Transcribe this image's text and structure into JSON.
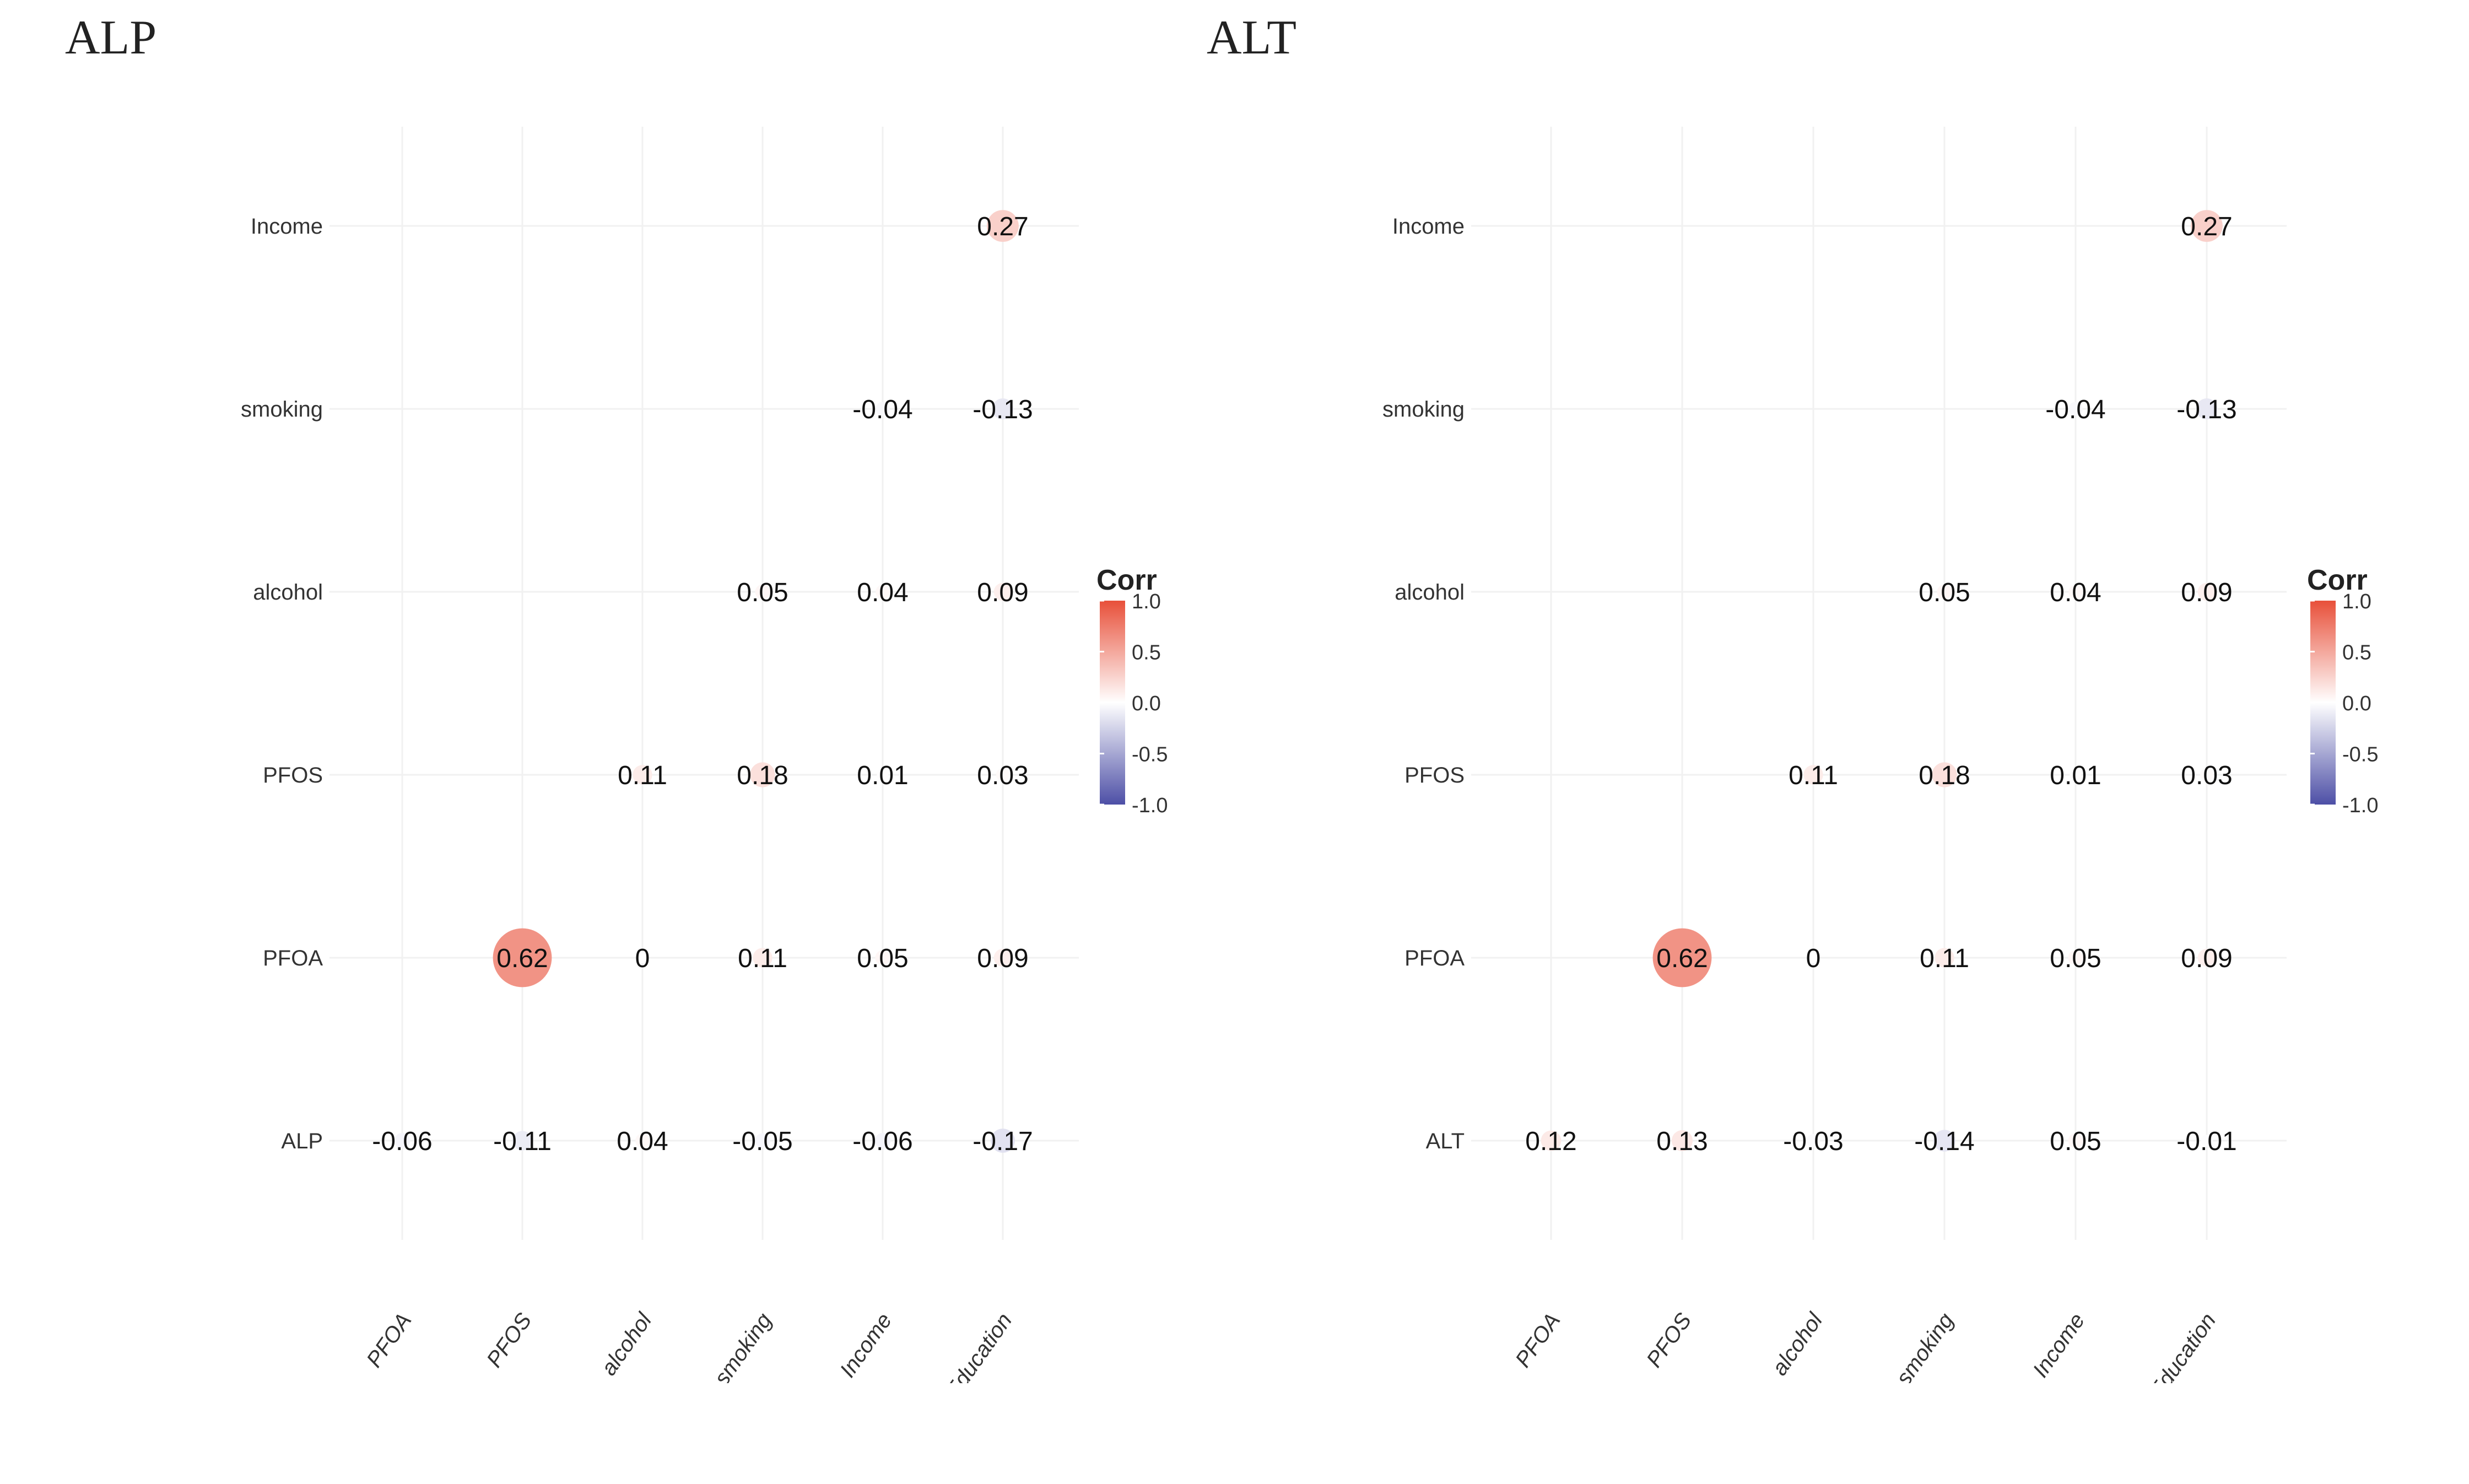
{
  "chart_data": [
    {
      "type": "heatmap",
      "title": "ALP",
      "rows": [
        "Income",
        "smoking",
        "alcohol",
        "PFOS",
        "PFOA",
        "ALP"
      ],
      "columns": [
        "PFOA",
        "PFOS",
        "alcohol",
        "smoking",
        "Income",
        "Education"
      ],
      "cells": [
        {
          "row": "Income",
          "col": "Education",
          "value": 0.27,
          "label": "0.27"
        },
        {
          "row": "smoking",
          "col": "Income",
          "value": -0.04,
          "label": "-0.04"
        },
        {
          "row": "smoking",
          "col": "Education",
          "value": -0.13,
          "label": "-0.13"
        },
        {
          "row": "alcohol",
          "col": "smoking",
          "value": 0.05,
          "label": "0.05"
        },
        {
          "row": "alcohol",
          "col": "Income",
          "value": 0.04,
          "label": "0.04"
        },
        {
          "row": "alcohol",
          "col": "Education",
          "value": 0.09,
          "label": "0.09"
        },
        {
          "row": "PFOS",
          "col": "alcohol",
          "value": 0.11,
          "label": "0.11"
        },
        {
          "row": "PFOS",
          "col": "smoking",
          "value": 0.18,
          "label": "0.18"
        },
        {
          "row": "PFOS",
          "col": "Income",
          "value": 0.01,
          "label": "0.01"
        },
        {
          "row": "PFOS",
          "col": "Education",
          "value": 0.03,
          "label": "0.03"
        },
        {
          "row": "PFOA",
          "col": "PFOS",
          "value": 0.62,
          "label": "0.62"
        },
        {
          "row": "PFOA",
          "col": "alcohol",
          "value": 0,
          "label": "0"
        },
        {
          "row": "PFOA",
          "col": "smoking",
          "value": 0.11,
          "label": "0.11"
        },
        {
          "row": "PFOA",
          "col": "Income",
          "value": 0.05,
          "label": "0.05"
        },
        {
          "row": "PFOA",
          "col": "Education",
          "value": 0.09,
          "label": "0.09"
        },
        {
          "row": "ALP",
          "col": "PFOA",
          "value": -0.06,
          "label": "-0.06"
        },
        {
          "row": "ALP",
          "col": "PFOS",
          "value": -0.11,
          "label": "-0.11"
        },
        {
          "row": "ALP",
          "col": "alcohol",
          "value": 0.04,
          "label": "0.04"
        },
        {
          "row": "ALP",
          "col": "smoking",
          "value": -0.05,
          "label": "-0.05"
        },
        {
          "row": "ALP",
          "col": "Income",
          "value": -0.06,
          "label": "-0.06"
        },
        {
          "row": "ALP",
          "col": "Education",
          "value": -0.17,
          "label": "-0.17"
        }
      ],
      "legend": {
        "title": "Corr",
        "ticks": [
          "1.0",
          "0.5",
          "0.0",
          "-0.5",
          "-1.0"
        ],
        "range": [
          -1,
          1
        ]
      }
    },
    {
      "type": "heatmap",
      "title": "ALT",
      "rows": [
        "Income",
        "smoking",
        "alcohol",
        "PFOS",
        "PFOA",
        "ALT"
      ],
      "columns": [
        "PFOA",
        "PFOS",
        "alcohol",
        "smoking",
        "Income",
        "Education"
      ],
      "cells": [
        {
          "row": "Income",
          "col": "Education",
          "value": 0.27,
          "label": "0.27"
        },
        {
          "row": "smoking",
          "col": "Income",
          "value": -0.04,
          "label": "-0.04"
        },
        {
          "row": "smoking",
          "col": "Education",
          "value": -0.13,
          "label": "-0.13"
        },
        {
          "row": "alcohol",
          "col": "smoking",
          "value": 0.05,
          "label": "0.05"
        },
        {
          "row": "alcohol",
          "col": "Income",
          "value": 0.04,
          "label": "0.04"
        },
        {
          "row": "alcohol",
          "col": "Education",
          "value": 0.09,
          "label": "0.09"
        },
        {
          "row": "PFOS",
          "col": "alcohol",
          "value": 0.11,
          "label": "0.11"
        },
        {
          "row": "PFOS",
          "col": "smoking",
          "value": 0.18,
          "label": "0.18"
        },
        {
          "row": "PFOS",
          "col": "Income",
          "value": 0.01,
          "label": "0.01"
        },
        {
          "row": "PFOS",
          "col": "Education",
          "value": 0.03,
          "label": "0.03"
        },
        {
          "row": "PFOA",
          "col": "PFOS",
          "value": 0.62,
          "label": "0.62"
        },
        {
          "row": "PFOA",
          "col": "alcohol",
          "value": 0,
          "label": "0"
        },
        {
          "row": "PFOA",
          "col": "smoking",
          "value": 0.11,
          "label": "0.11"
        },
        {
          "row": "PFOA",
          "col": "Income",
          "value": 0.05,
          "label": "0.05"
        },
        {
          "row": "PFOA",
          "col": "Education",
          "value": 0.09,
          "label": "0.09"
        },
        {
          "row": "ALT",
          "col": "PFOA",
          "value": 0.12,
          "label": "0.12"
        },
        {
          "row": "ALT",
          "col": "PFOS",
          "value": 0.13,
          "label": "0.13"
        },
        {
          "row": "ALT",
          "col": "alcohol",
          "value": -0.03,
          "label": "-0.03"
        },
        {
          "row": "ALT",
          "col": "smoking",
          "value": -0.14,
          "label": "-0.14"
        },
        {
          "row": "ALT",
          "col": "Income",
          "value": 0.05,
          "label": "0.05"
        },
        {
          "row": "ALT",
          "col": "Education",
          "value": -0.01,
          "label": "-0.01"
        }
      ],
      "legend": {
        "title": "Corr",
        "ticks": [
          "1.0",
          "0.5",
          "0.0",
          "-0.5",
          "-1.0"
        ],
        "range": [
          -1,
          1
        ]
      }
    }
  ],
  "colors": {
    "high": "#e8503a",
    "mid": "#ffffff",
    "low": "#4d4fa6",
    "grid": "#f1f1f1",
    "text": "#111111"
  }
}
